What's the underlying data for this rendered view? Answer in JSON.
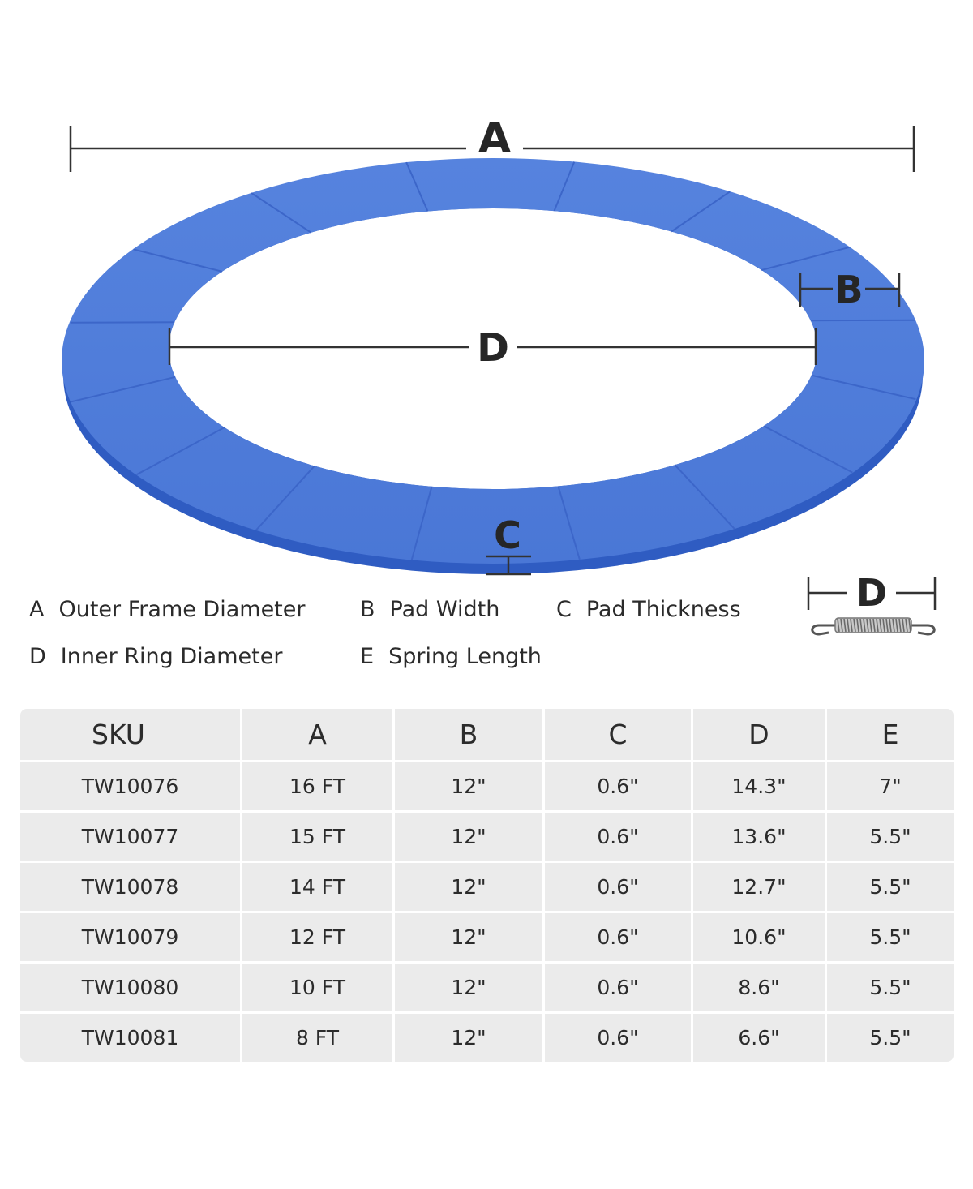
{
  "diagram": {
    "labels": {
      "a": "A",
      "b": "B",
      "c": "C",
      "d": "D",
      "spring_d": "D"
    },
    "ring_color": "#4a77d6"
  },
  "legend": [
    {
      "key": "A",
      "text": "Outer Frame Diameter"
    },
    {
      "key": "B",
      "text": "Pad Width"
    },
    {
      "key": "C",
      "text": "Pad Thickness"
    },
    {
      "key": "D",
      "text": "Inner Ring Diameter"
    },
    {
      "key": "E",
      "text": "Spring Length"
    }
  ],
  "table": {
    "headers": [
      "SKU",
      "A",
      "B",
      "C",
      "D",
      "E"
    ],
    "rows": [
      [
        "TW10076",
        "16 FT",
        "12\"",
        "0.6\"",
        "14.3\"",
        "7\""
      ],
      [
        "TW10077",
        "15 FT",
        "12\"",
        "0.6\"",
        "13.6\"",
        "5.5\""
      ],
      [
        "TW10078",
        "14 FT",
        "12\"",
        "0.6\"",
        "12.7\"",
        "5.5\""
      ],
      [
        "TW10079",
        "12 FT",
        "12\"",
        "0.6\"",
        "10.6\"",
        "5.5\""
      ],
      [
        "TW10080",
        "10 FT",
        "12\"",
        "0.6\"",
        "8.6\"",
        "5.5\""
      ],
      [
        "TW10081",
        "8 FT",
        "12\"",
        "0.6\"",
        "6.6\"",
        "5.5\""
      ]
    ]
  }
}
